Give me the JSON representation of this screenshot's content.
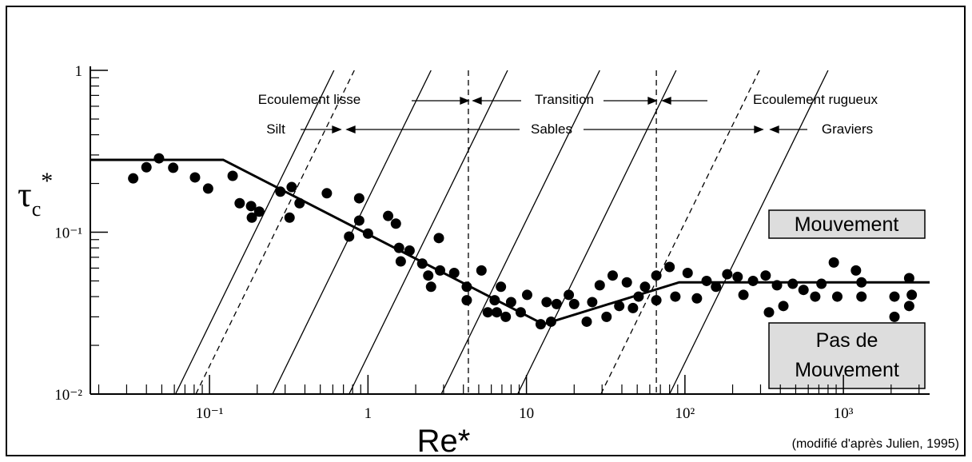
{
  "chart_data": {
    "type": "scatter",
    "xlabel": "Re*",
    "ylabel": {
      "symbol": "τ",
      "subscript": "c",
      "superscript": "*"
    },
    "xscale": "log",
    "yscale": "log",
    "xlim": [
      0.0177,
      3500
    ],
    "ylim": [
      0.01,
      1
    ],
    "xticks": [
      {
        "value": 0.1,
        "label": "10⁻¹"
      },
      1,
      10,
      {
        "value": 100,
        "label": "10²"
      },
      {
        "value": 1000,
        "label": "10³"
      }
    ],
    "yticks": [
      {
        "value": 0.01,
        "label": "10⁻²"
      },
      {
        "value": 0.1,
        "label": "10⁻¹"
      },
      1
    ],
    "color": "#000000",
    "x": [
      0.033,
      0.04,
      0.048,
      0.059,
      0.081,
      0.098,
      0.14,
      0.155,
      0.183,
      0.185,
      0.206,
      0.28,
      0.33,
      0.32,
      0.37,
      0.55,
      0.88,
      0.88,
      0.76,
      1.0,
      1.34,
      1.5,
      1.57,
      1.83,
      1.61,
      2.2,
      2.4,
      2.5,
      2.8,
      2.85,
      3.5,
      4.2,
      4.2,
      5.2,
      5.7,
      6.9,
      6.3,
      6.5,
      7.4,
      8.0,
      9.2,
      10.1,
      12.3,
      13.4,
      14.3,
      15.5,
      18.5,
      20,
      24,
      26,
      29,
      32,
      35,
      38.5,
      43,
      47,
      51,
      56,
      66,
      66,
      80,
      87,
      104,
      119,
      137,
      157,
      185,
      215,
      234,
      269,
      323,
      339,
      381,
      418,
      479,
      560,
      664,
      727,
      870,
      915,
      1200,
      1300,
      1300,
      2100,
      2100,
      2600,
      2600,
      2700
    ],
    "values": [
      0.215,
      0.252,
      0.286,
      0.25,
      0.218,
      0.186,
      0.223,
      0.151,
      0.145,
      0.123,
      0.134,
      0.178,
      0.19,
      0.123,
      0.151,
      0.174,
      0.162,
      0.118,
      0.094,
      0.098,
      0.126,
      0.113,
      0.08,
      0.077,
      0.066,
      0.064,
      0.054,
      0.046,
      0.092,
      0.058,
      0.056,
      0.046,
      0.038,
      0.058,
      0.032,
      0.046,
      0.038,
      0.032,
      0.03,
      0.037,
      0.032,
      0.041,
      0.027,
      0.037,
      0.028,
      0.036,
      0.041,
      0.036,
      0.028,
      0.037,
      0.047,
      0.03,
      0.054,
      0.035,
      0.049,
      0.034,
      0.04,
      0.046,
      0.054,
      0.038,
      0.061,
      0.04,
      0.056,
      0.039,
      0.05,
      0.046,
      0.055,
      0.053,
      0.041,
      0.05,
      0.054,
      0.032,
      0.047,
      0.035,
      0.048,
      0.044,
      0.04,
      0.048,
      0.065,
      0.04,
      0.058,
      0.049,
      0.04,
      0.04,
      0.03,
      0.052,
      0.035,
      0.041
    ],
    "curve": {
      "x": [
        0.0177,
        0.122,
        12.8,
        92,
        3500
      ],
      "values": [
        0.28,
        0.28,
        0.027,
        0.049,
        0.049
      ]
    },
    "slope_lines": {
      "solid_x": [
        0.061,
        0.25,
        0.76,
        2.9,
        8.8,
        80
      ],
      "dashed_x": [
        0.082,
        29.5
      ]
    },
    "vertical_lines_x": [
      4.3,
      66
    ],
    "annotations": [
      "Ecoulement lisse",
      "Transition",
      "Ecoulement rugueux",
      "Silt",
      "Sables",
      "Graviers",
      "Mouvement",
      "Pas de Mouvement"
    ],
    "source": "(modifié d'après Julien, 1995)"
  }
}
